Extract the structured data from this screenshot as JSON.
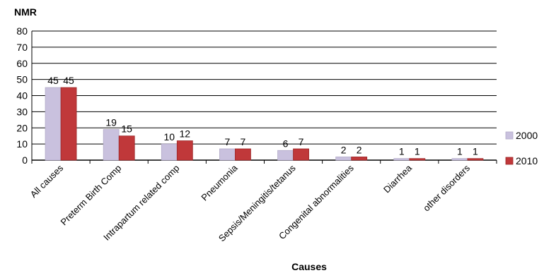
{
  "chart_data": {
    "type": "bar",
    "ylabel": "NMR",
    "xlabel": "Causes",
    "categories": [
      "All causes",
      "Preterm Birth Comp",
      "Intrapartum related comp",
      "Pneumonia",
      "Sepsis/Meningitis/tetanus",
      "Congenital abnormalities",
      "Diarrhea",
      "other disorders"
    ],
    "series": [
      {
        "name": "2000",
        "color": "#c9c1de",
        "values": [
          45,
          19,
          10,
          7,
          6,
          2,
          1,
          1
        ]
      },
      {
        "name": "2010",
        "color": "#c0383a",
        "values": [
          45,
          15,
          12,
          7,
          7,
          2,
          1,
          1
        ]
      }
    ],
    "ylim": [
      0,
      80
    ],
    "yticks": [
      0,
      10,
      20,
      30,
      40,
      50,
      60,
      70,
      80
    ],
    "grid": true,
    "legend_position": "right"
  }
}
